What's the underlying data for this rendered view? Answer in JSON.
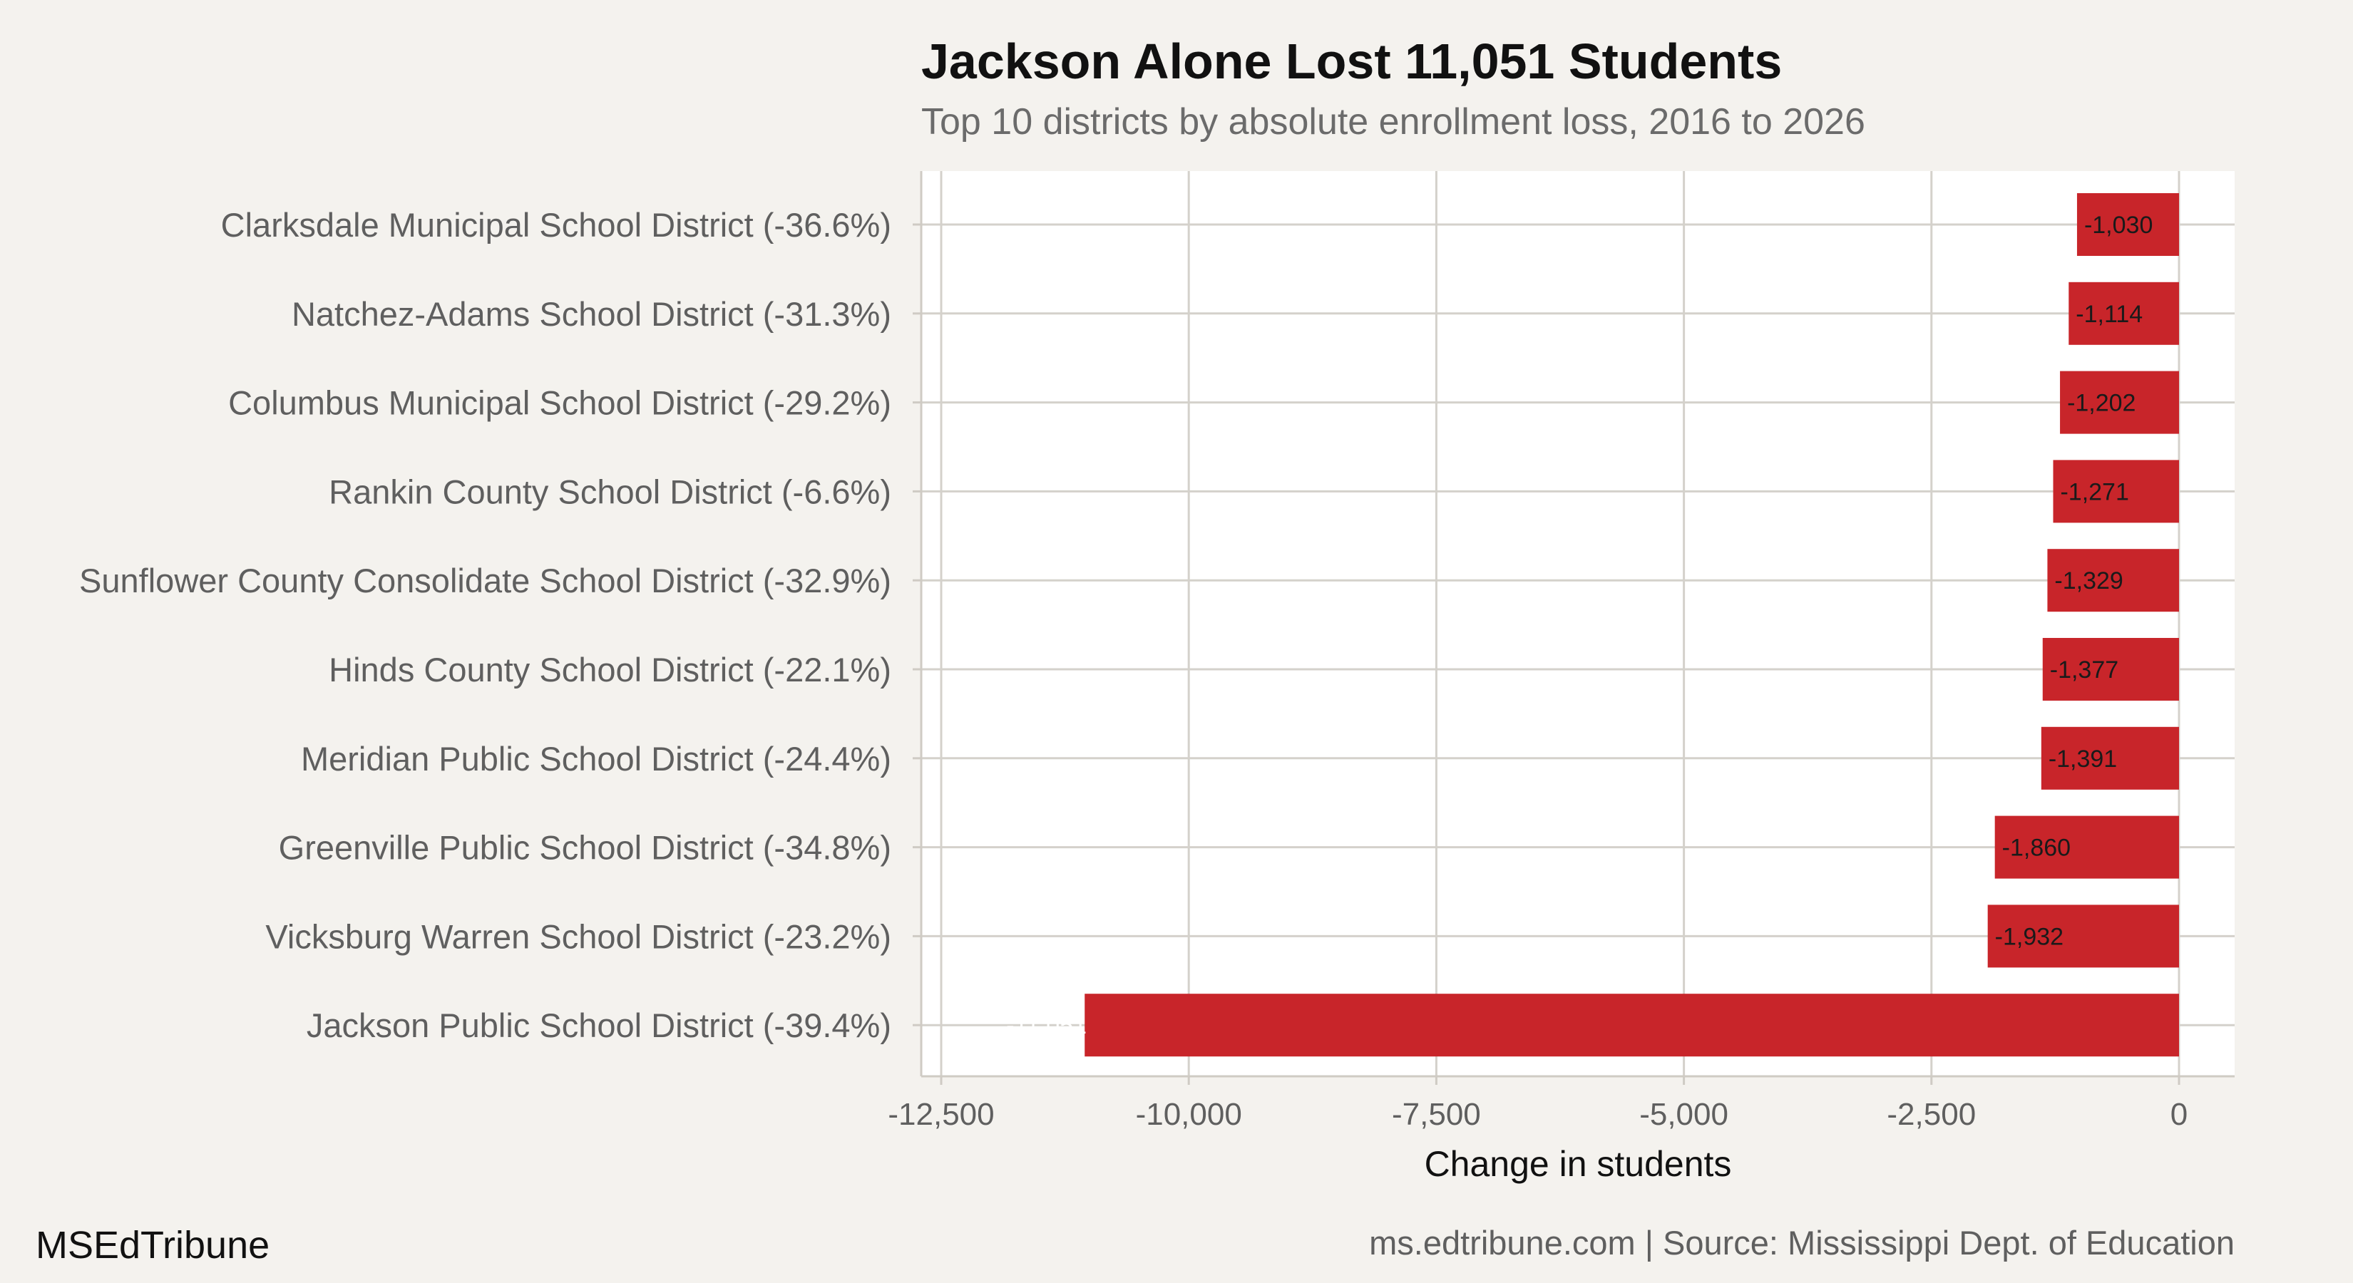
{
  "chart_data": {
    "type": "bar",
    "orientation": "horizontal",
    "title": "Jackson Alone Lost 11,051 Students",
    "subtitle": "Top 10 districts by absolute enrollment loss, 2016 to 2026",
    "xlabel": "Change in students",
    "ylabel": "",
    "xlim": [
      -12500,
      0
    ],
    "x_ticks": [
      -12500,
      -10000,
      -7500,
      -5000,
      -2500,
      0
    ],
    "x_tick_labels": [
      "-12,500",
      "-10,000",
      "-7,500",
      "-5,000",
      "-2,500",
      "0"
    ],
    "grid": true,
    "bar_color": "#c8252a",
    "categories": [
      "Clarksdale Municipal School District (-36.6%)",
      "Natchez-Adams School District (-31.3%)",
      "Columbus Municipal School District (-29.2%)",
      "Rankin County School District (-6.6%)",
      "Sunflower County Consolidate School District (-32.9%)",
      "Hinds County School District (-22.1%)",
      "Meridian Public School District (-24.4%)",
      "Greenville Public School District (-34.8%)",
      "Vicksburg Warren School District (-23.2%)",
      "Jackson Public School District (-39.4%)"
    ],
    "values": [
      -1030,
      -1114,
      -1202,
      -1271,
      -1329,
      -1377,
      -1391,
      -1860,
      -1932,
      -11051
    ],
    "data_labels": [
      "-1,030",
      "-1,114",
      "-1,202",
      "-1,271",
      "-1,329",
      "-1,377",
      "-1,391",
      "-1,860",
      "-1,932",
      "-11,051"
    ]
  },
  "footer": {
    "brand": "MSEdTribune",
    "source": "ms.edtribune.com | Source: Mississippi Dept. of Education"
  }
}
